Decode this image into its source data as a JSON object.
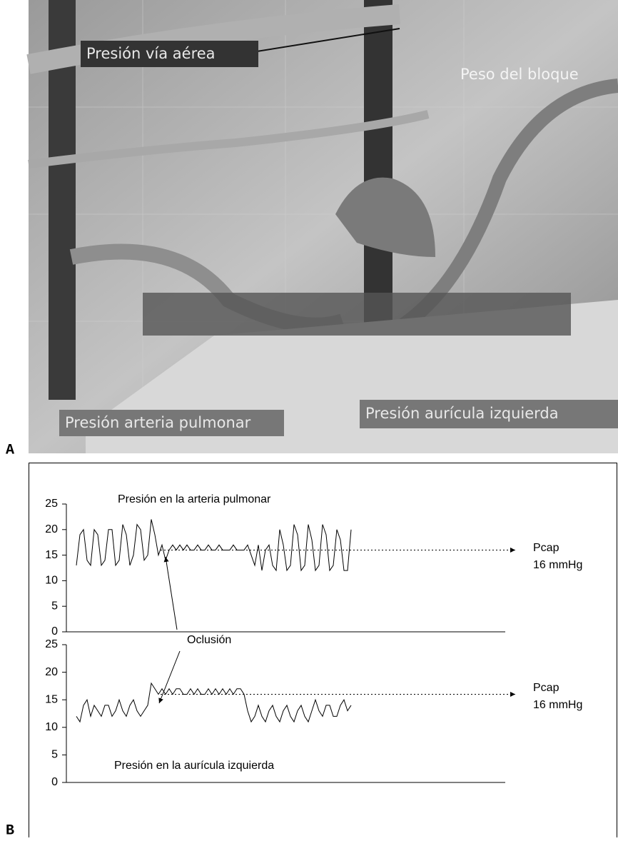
{
  "photo": {
    "panel_label": "A",
    "labels": [
      "Presión vía aérea",
      "Peso del bloque",
      "Presión arteria pulmonar",
      "Presión aurícula izquierda"
    ]
  },
  "figure_b": {
    "panel_label": "B",
    "annotation": "Oclusión"
  },
  "chart_data": [
    {
      "type": "line",
      "title": "Presión en la arteria pulmonar",
      "color": "#000000",
      "values": [
        13,
        19,
        20,
        14,
        13,
        20,
        19,
        13,
        14,
        20,
        20,
        13,
        14,
        21,
        19,
        13,
        15,
        21,
        20,
        14,
        15,
        22,
        19,
        15,
        17,
        14,
        16,
        17,
        16,
        17,
        16,
        17,
        16,
        16,
        17,
        16,
        16,
        17,
        16,
        16,
        17,
        16,
        16,
        16,
        17,
        16,
        16,
        16,
        17,
        15,
        13,
        17,
        12,
        16,
        17,
        13,
        12,
        20,
        17,
        12,
        13,
        21,
        19,
        12,
        13,
        21,
        18,
        12,
        13,
        21,
        19,
        12,
        13,
        20,
        18,
        12,
        12,
        20
      ],
      "ylim": [
        0,
        25
      ],
      "yticks": [
        0,
        5,
        10,
        15,
        20,
        25
      ],
      "reference": {
        "value": 16,
        "name": "Pcap",
        "label": "16 mmHg"
      }
    },
    {
      "type": "line",
      "title": "Presión en la aurícula izquierda",
      "color": "#000000",
      "values": [
        12,
        11,
        14,
        15,
        12,
        14,
        13,
        12,
        14,
        14,
        12,
        13,
        15,
        13,
        12,
        14,
        15,
        13,
        12,
        13,
        14,
        18,
        17,
        16,
        17,
        16,
        17,
        16,
        17,
        17,
        16,
        16,
        17,
        16,
        17,
        16,
        16,
        17,
        16,
        17,
        16,
        17,
        16,
        17,
        16,
        17,
        17,
        16,
        13,
        11,
        12,
        14,
        12,
        11,
        13,
        14,
        12,
        11,
        13,
        14,
        12,
        11,
        13,
        14,
        12,
        11,
        13,
        15,
        13,
        12,
        14,
        14,
        12,
        12,
        14,
        15,
        13,
        14
      ],
      "ylim": [
        0,
        25
      ],
      "yticks": [
        0,
        5,
        10,
        15,
        20,
        25
      ],
      "reference": {
        "value": 16,
        "name": "Pcap",
        "label": "16 mmHg"
      }
    }
  ]
}
